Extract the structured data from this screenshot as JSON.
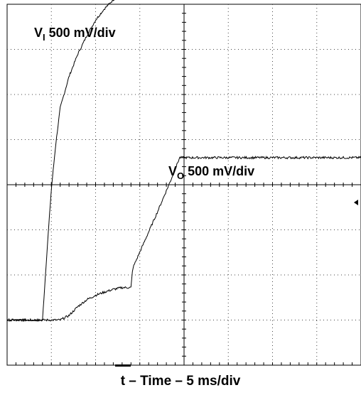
{
  "chart_data": {
    "type": "line",
    "title": "",
    "xlabel": "t – Time – 5 ms/div",
    "ylabel": "",
    "grid": true,
    "divisions": {
      "horizontal": 8,
      "vertical": 8
    },
    "x_unit": "ms",
    "x_range": [
      0,
      40
    ],
    "series": [
      {
        "label_main": "V",
        "label_sub": "I",
        "label_rest": " 500 mV/div",
        "unit": "div",
        "x": [
          0,
          4.0,
          4.5,
          5.0,
          5.5,
          6.0,
          7.0,
          8.0,
          9.0,
          10.0,
          11.0,
          12.0,
          13.0,
          14.0,
          15.0,
          16.0,
          18.0,
          20.0,
          22.0,
          25.0,
          28.0,
          32.0,
          36.0,
          40.0
        ],
        "y": [
          0.0,
          0.0,
          1.5,
          2.9,
          3.9,
          4.7,
          5.4,
          5.9,
          6.3,
          6.65,
          6.9,
          7.1,
          7.25,
          7.35,
          7.43,
          7.5,
          7.55,
          7.6,
          7.63,
          7.65,
          7.66,
          7.67,
          7.68,
          7.68
        ]
      },
      {
        "label_main": "V",
        "label_sub": "O",
        "label_rest": " 500 mV/div",
        "unit": "div",
        "x": [
          0,
          6.0,
          7.0,
          8.0,
          9.0,
          10.0,
          11.0,
          12.0,
          13.0,
          14.0,
          14.2,
          17.0,
          18.5,
          19.5,
          22.0,
          24.0,
          26.0,
          28.0,
          29.0,
          31.0,
          34.0,
          37.0,
          40.0
        ],
        "y": [
          0.0,
          0.0,
          0.1,
          0.3,
          0.45,
          0.55,
          0.62,
          0.68,
          0.72,
          0.72,
          1.15,
          2.4,
          3.1,
          3.6,
          3.6,
          3.6,
          3.6,
          3.6,
          3.6,
          3.6,
          3.6,
          3.6,
          3.6
        ]
      }
    ]
  }
}
